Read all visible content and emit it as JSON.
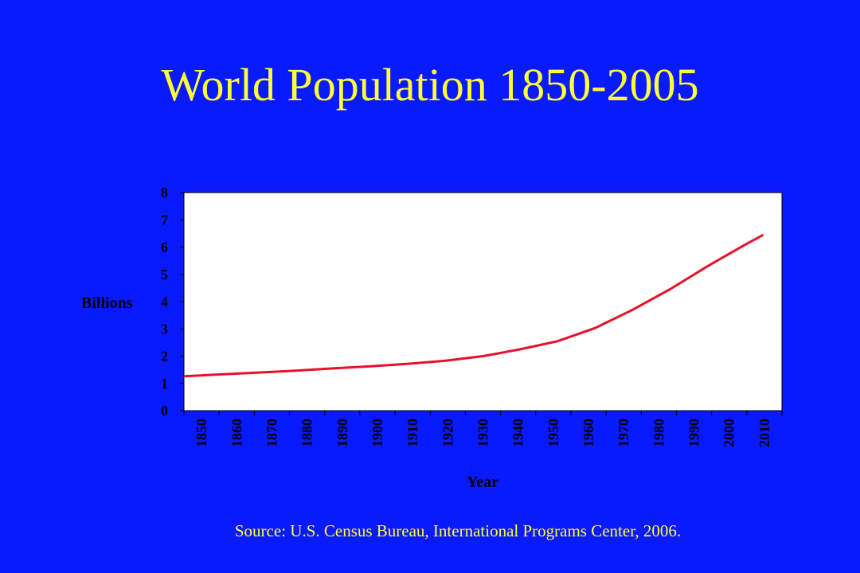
{
  "title": "World Population 1850-2005",
  "source": "Source: U.S. Census Bureau, International Programs Center, 2006.",
  "colors": {
    "background": "#0a1aff",
    "title": "#ffff33",
    "plot_area": "#ffffff",
    "line": "#e8102a"
  },
  "chart_data": {
    "type": "line",
    "title": "",
    "xlabel": "Year",
    "ylabel": "Billions",
    "xlim": [
      1850,
      2010
    ],
    "ylim": [
      0,
      8
    ],
    "x_ticks": [
      "1850",
      "1860",
      "1870",
      "1880",
      "1890",
      "1900",
      "1910",
      "1920",
      "1930",
      "1940",
      "1950",
      "1960",
      "1970",
      "1980",
      "1990",
      "2000",
      "2010"
    ],
    "y_ticks": [
      "0",
      "1",
      "2",
      "3",
      "4",
      "5",
      "6",
      "7",
      "8"
    ],
    "grid": false,
    "legend": "none",
    "series": [
      {
        "x": [
          1850,
          1860,
          1870,
          1880,
          1890,
          1900,
          1910,
          1920,
          1930,
          1940,
          1950,
          1960,
          1970,
          1980,
          1990,
          2000,
          2005
        ],
        "y": [
          1.26,
          1.33,
          1.4,
          1.47,
          1.55,
          1.63,
          1.72,
          1.83,
          2.0,
          2.25,
          2.55,
          3.03,
          3.7,
          4.45,
          5.29,
          6.08,
          6.45
        ]
      }
    ]
  }
}
